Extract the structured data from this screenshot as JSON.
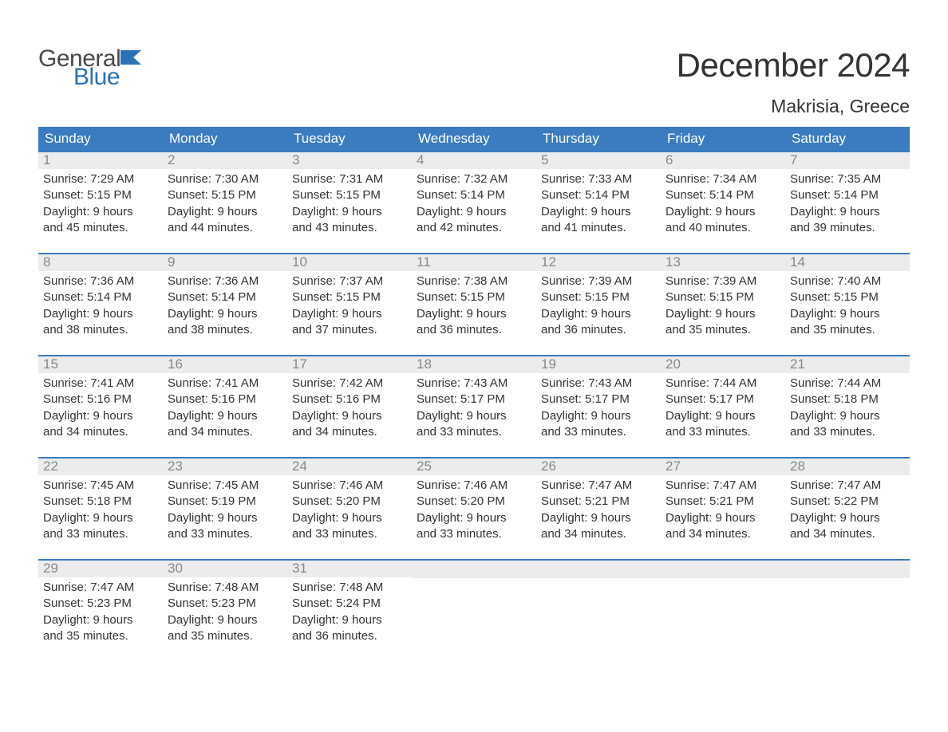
{
  "logo": {
    "word1": "General",
    "word2": "Blue",
    "word1_color": "#4a4a4a",
    "word2_color": "#2a71b8",
    "flag_color": "#2a71b8"
  },
  "title": "December 2024",
  "location": "Makrisia, Greece",
  "colors": {
    "header_bg": "#3b7bbf",
    "header_text": "#ffffff",
    "daynum_bg": "#ececec",
    "daynum_text": "#888888",
    "body_text": "#333333",
    "row_border": "#3b7bbf",
    "page_bg": "#ffffff"
  },
  "typography": {
    "title_fontsize": 42,
    "location_fontsize": 23,
    "dayheader_fontsize": 17,
    "daynum_fontsize": 17,
    "body_fontsize": 15,
    "logo_fontsize": 30
  },
  "day_headers": [
    "Sunday",
    "Monday",
    "Tuesday",
    "Wednesday",
    "Thursday",
    "Friday",
    "Saturday"
  ],
  "weeks": [
    [
      {
        "num": "1",
        "sunrise": "Sunrise: 7:29 AM",
        "sunset": "Sunset: 5:15 PM",
        "dl1": "Daylight: 9 hours",
        "dl2": "and 45 minutes."
      },
      {
        "num": "2",
        "sunrise": "Sunrise: 7:30 AM",
        "sunset": "Sunset: 5:15 PM",
        "dl1": "Daylight: 9 hours",
        "dl2": "and 44 minutes."
      },
      {
        "num": "3",
        "sunrise": "Sunrise: 7:31 AM",
        "sunset": "Sunset: 5:15 PM",
        "dl1": "Daylight: 9 hours",
        "dl2": "and 43 minutes."
      },
      {
        "num": "4",
        "sunrise": "Sunrise: 7:32 AM",
        "sunset": "Sunset: 5:14 PM",
        "dl1": "Daylight: 9 hours",
        "dl2": "and 42 minutes."
      },
      {
        "num": "5",
        "sunrise": "Sunrise: 7:33 AM",
        "sunset": "Sunset: 5:14 PM",
        "dl1": "Daylight: 9 hours",
        "dl2": "and 41 minutes."
      },
      {
        "num": "6",
        "sunrise": "Sunrise: 7:34 AM",
        "sunset": "Sunset: 5:14 PM",
        "dl1": "Daylight: 9 hours",
        "dl2": "and 40 minutes."
      },
      {
        "num": "7",
        "sunrise": "Sunrise: 7:35 AM",
        "sunset": "Sunset: 5:14 PM",
        "dl1": "Daylight: 9 hours",
        "dl2": "and 39 minutes."
      }
    ],
    [
      {
        "num": "8",
        "sunrise": "Sunrise: 7:36 AM",
        "sunset": "Sunset: 5:14 PM",
        "dl1": "Daylight: 9 hours",
        "dl2": "and 38 minutes."
      },
      {
        "num": "9",
        "sunrise": "Sunrise: 7:36 AM",
        "sunset": "Sunset: 5:14 PM",
        "dl1": "Daylight: 9 hours",
        "dl2": "and 38 minutes."
      },
      {
        "num": "10",
        "sunrise": "Sunrise: 7:37 AM",
        "sunset": "Sunset: 5:15 PM",
        "dl1": "Daylight: 9 hours",
        "dl2": "and 37 minutes."
      },
      {
        "num": "11",
        "sunrise": "Sunrise: 7:38 AM",
        "sunset": "Sunset: 5:15 PM",
        "dl1": "Daylight: 9 hours",
        "dl2": "and 36 minutes."
      },
      {
        "num": "12",
        "sunrise": "Sunrise: 7:39 AM",
        "sunset": "Sunset: 5:15 PM",
        "dl1": "Daylight: 9 hours",
        "dl2": "and 36 minutes."
      },
      {
        "num": "13",
        "sunrise": "Sunrise: 7:39 AM",
        "sunset": "Sunset: 5:15 PM",
        "dl1": "Daylight: 9 hours",
        "dl2": "and 35 minutes."
      },
      {
        "num": "14",
        "sunrise": "Sunrise: 7:40 AM",
        "sunset": "Sunset: 5:15 PM",
        "dl1": "Daylight: 9 hours",
        "dl2": "and 35 minutes."
      }
    ],
    [
      {
        "num": "15",
        "sunrise": "Sunrise: 7:41 AM",
        "sunset": "Sunset: 5:16 PM",
        "dl1": "Daylight: 9 hours",
        "dl2": "and 34 minutes."
      },
      {
        "num": "16",
        "sunrise": "Sunrise: 7:41 AM",
        "sunset": "Sunset: 5:16 PM",
        "dl1": "Daylight: 9 hours",
        "dl2": "and 34 minutes."
      },
      {
        "num": "17",
        "sunrise": "Sunrise: 7:42 AM",
        "sunset": "Sunset: 5:16 PM",
        "dl1": "Daylight: 9 hours",
        "dl2": "and 34 minutes."
      },
      {
        "num": "18",
        "sunrise": "Sunrise: 7:43 AM",
        "sunset": "Sunset: 5:17 PM",
        "dl1": "Daylight: 9 hours",
        "dl2": "and 33 minutes."
      },
      {
        "num": "19",
        "sunrise": "Sunrise: 7:43 AM",
        "sunset": "Sunset: 5:17 PM",
        "dl1": "Daylight: 9 hours",
        "dl2": "and 33 minutes."
      },
      {
        "num": "20",
        "sunrise": "Sunrise: 7:44 AM",
        "sunset": "Sunset: 5:17 PM",
        "dl1": "Daylight: 9 hours",
        "dl2": "and 33 minutes."
      },
      {
        "num": "21",
        "sunrise": "Sunrise: 7:44 AM",
        "sunset": "Sunset: 5:18 PM",
        "dl1": "Daylight: 9 hours",
        "dl2": "and 33 minutes."
      }
    ],
    [
      {
        "num": "22",
        "sunrise": "Sunrise: 7:45 AM",
        "sunset": "Sunset: 5:18 PM",
        "dl1": "Daylight: 9 hours",
        "dl2": "and 33 minutes."
      },
      {
        "num": "23",
        "sunrise": "Sunrise: 7:45 AM",
        "sunset": "Sunset: 5:19 PM",
        "dl1": "Daylight: 9 hours",
        "dl2": "and 33 minutes."
      },
      {
        "num": "24",
        "sunrise": "Sunrise: 7:46 AM",
        "sunset": "Sunset: 5:20 PM",
        "dl1": "Daylight: 9 hours",
        "dl2": "and 33 minutes."
      },
      {
        "num": "25",
        "sunrise": "Sunrise: 7:46 AM",
        "sunset": "Sunset: 5:20 PM",
        "dl1": "Daylight: 9 hours",
        "dl2": "and 33 minutes."
      },
      {
        "num": "26",
        "sunrise": "Sunrise: 7:47 AM",
        "sunset": "Sunset: 5:21 PM",
        "dl1": "Daylight: 9 hours",
        "dl2": "and 34 minutes."
      },
      {
        "num": "27",
        "sunrise": "Sunrise: 7:47 AM",
        "sunset": "Sunset: 5:21 PM",
        "dl1": "Daylight: 9 hours",
        "dl2": "and 34 minutes."
      },
      {
        "num": "28",
        "sunrise": "Sunrise: 7:47 AM",
        "sunset": "Sunset: 5:22 PM",
        "dl1": "Daylight: 9 hours",
        "dl2": "and 34 minutes."
      }
    ],
    [
      {
        "num": "29",
        "sunrise": "Sunrise: 7:47 AM",
        "sunset": "Sunset: 5:23 PM",
        "dl1": "Daylight: 9 hours",
        "dl2": "and 35 minutes."
      },
      {
        "num": "30",
        "sunrise": "Sunrise: 7:48 AM",
        "sunset": "Sunset: 5:23 PM",
        "dl1": "Daylight: 9 hours",
        "dl2": "and 35 minutes."
      },
      {
        "num": "31",
        "sunrise": "Sunrise: 7:48 AM",
        "sunset": "Sunset: 5:24 PM",
        "dl1": "Daylight: 9 hours",
        "dl2": "and 36 minutes."
      },
      null,
      null,
      null,
      null
    ]
  ]
}
